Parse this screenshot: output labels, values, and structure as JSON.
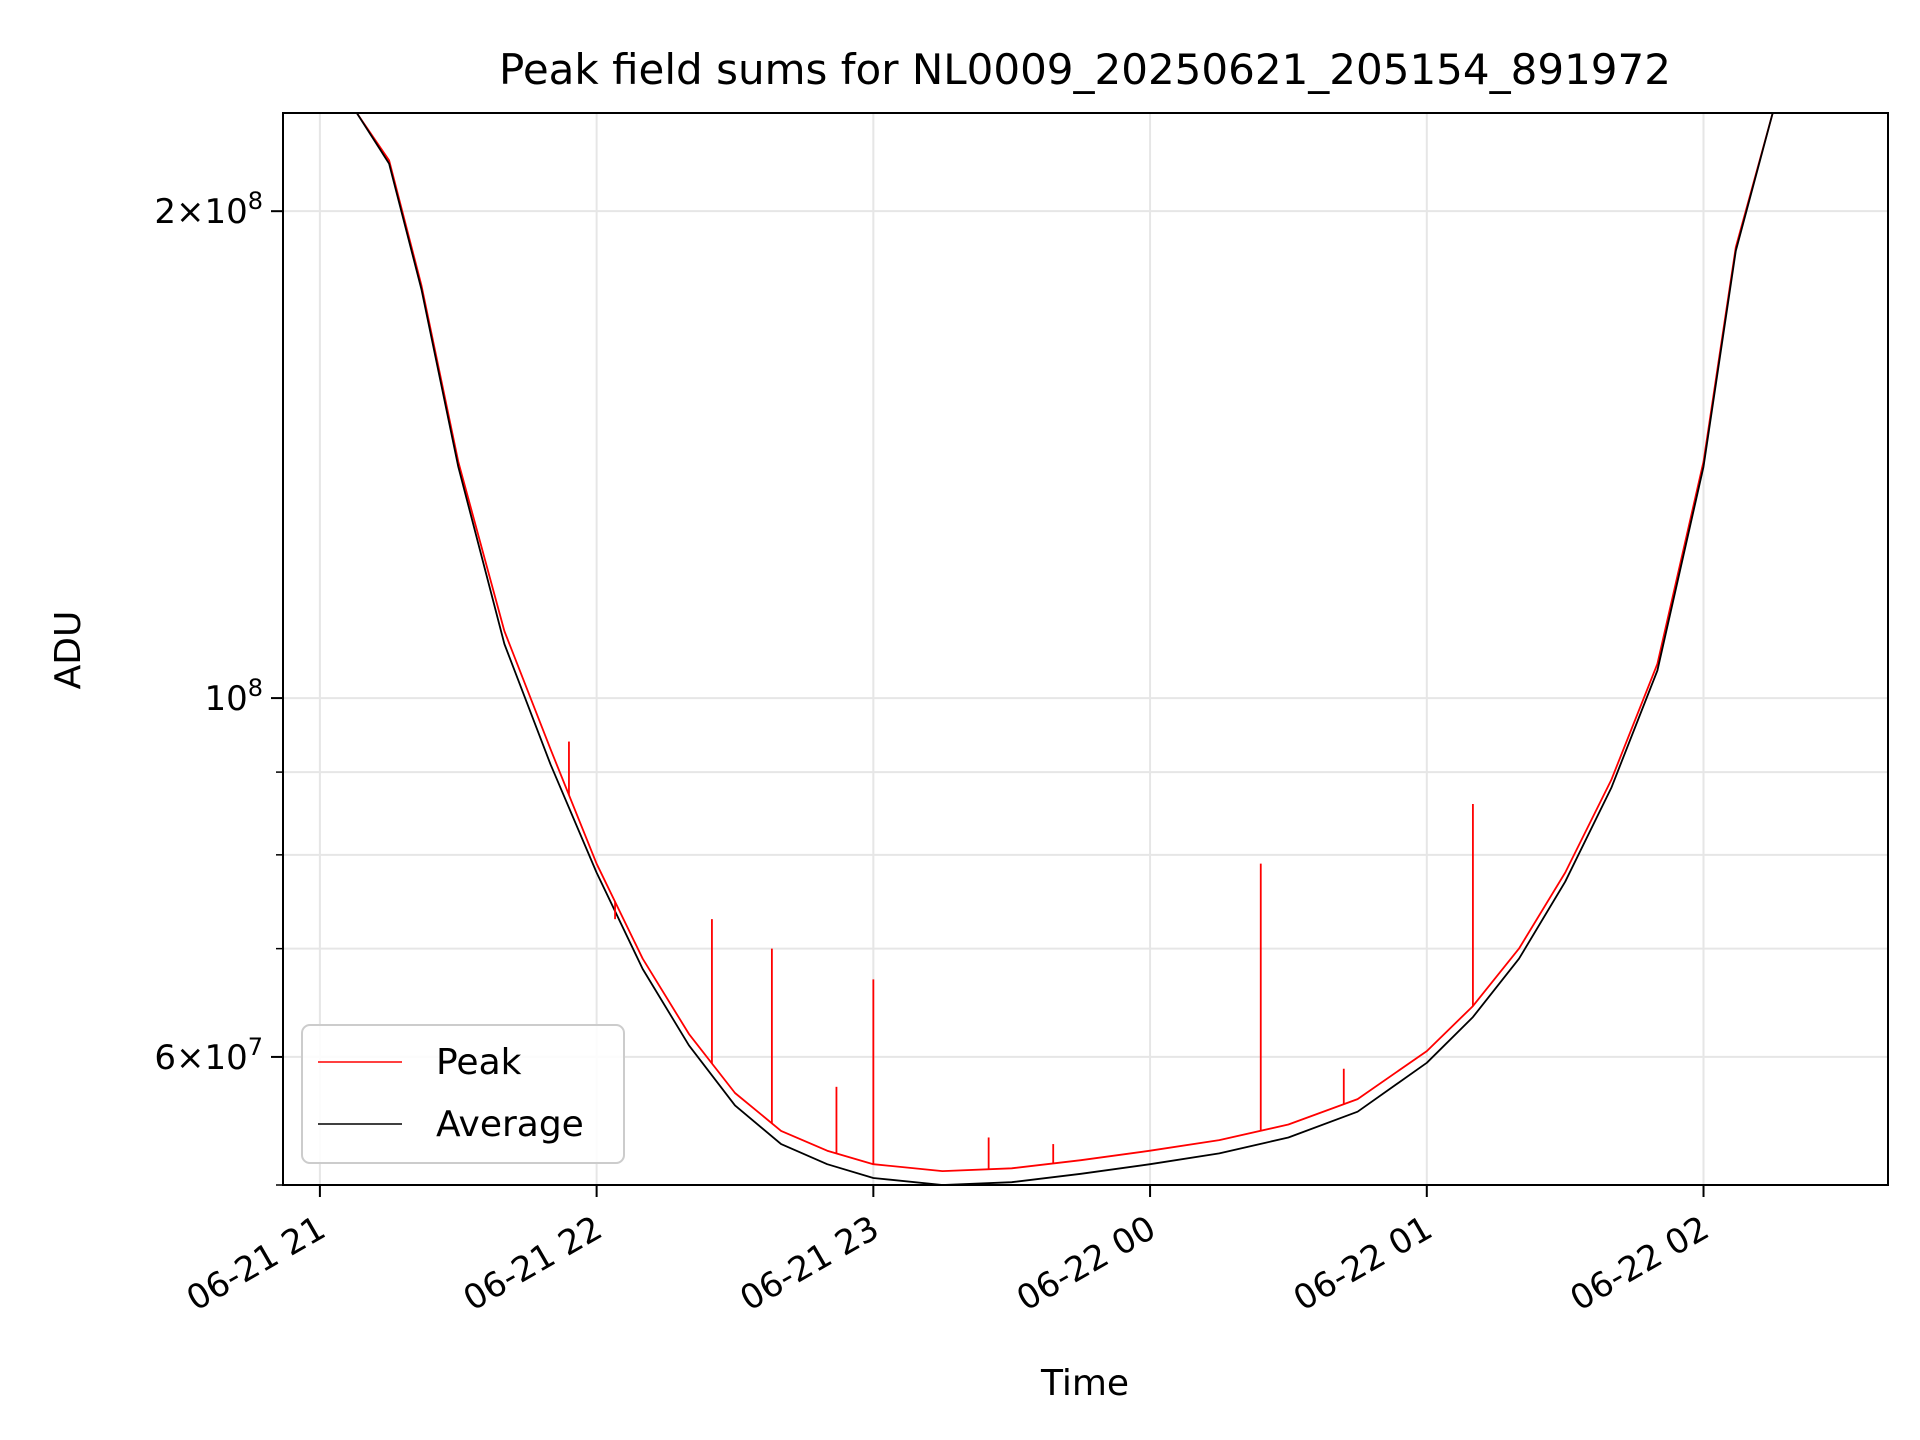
{
  "chart_data": {
    "type": "line",
    "title": "Peak field sums for NL0009_20250621_205154_891972",
    "xlabel": "Time",
    "ylabel": "ADU",
    "y_scale": "log",
    "ylim": [
      50000000,
      230000000
    ],
    "xlim": [
      "2025-06-21 20:52",
      "2025-06-22 02:40"
    ],
    "grid": true,
    "legend_position": "lower-left",
    "x_ticks": [
      {
        "value": "2025-06-21 21:00",
        "label": "06-21 21"
      },
      {
        "value": "2025-06-21 22:00",
        "label": "06-21 22"
      },
      {
        "value": "2025-06-21 23:00",
        "label": "06-21 23"
      },
      {
        "value": "2025-06-22 00:00",
        "label": "06-22 00"
      },
      {
        "value": "2025-06-22 01:00",
        "label": "06-22 01"
      },
      {
        "value": "2025-06-22 02:00",
        "label": "06-22 02"
      }
    ],
    "y_major_ticks": [
      {
        "value": 60000000,
        "mantissa": "6",
        "exponent": "7"
      },
      {
        "value": 100000000,
        "mantissa": "",
        "exponent": "8"
      },
      {
        "value": 200000000,
        "mantissa": "2",
        "exponent": "8"
      }
    ],
    "y_minor_ticks": [
      50000000,
      70000000,
      80000000,
      90000000
    ],
    "series": [
      {
        "name": "Peak",
        "color": "#ff0000",
        "x": [
          "2025-06-21 20:52",
          "2025-06-21 21:08",
          "2025-06-21 21:15",
          "2025-06-21 21:22",
          "2025-06-21 21:30",
          "2025-06-21 21:40",
          "2025-06-21 21:50",
          "2025-06-21 22:00",
          "2025-06-21 22:10",
          "2025-06-21 22:20",
          "2025-06-21 22:30",
          "2025-06-21 22:40",
          "2025-06-21 22:50",
          "2025-06-21 23:00",
          "2025-06-21 23:15",
          "2025-06-21 23:30",
          "2025-06-21 23:45",
          "2025-06-22 00:00",
          "2025-06-22 00:15",
          "2025-06-22 00:30",
          "2025-06-22 00:45",
          "2025-06-22 01:00",
          "2025-06-22 01:10",
          "2025-06-22 01:20",
          "2025-06-22 01:30",
          "2025-06-22 01:40",
          "2025-06-22 01:50",
          "2025-06-22 02:00",
          "2025-06-22 02:07",
          "2025-06-22 02:15",
          "2025-06-22 02:40"
        ],
        "y": [
          230000000,
          230000000,
          215000000,
          180000000,
          140000000,
          110000000,
          93000000,
          79000000,
          69000000,
          62000000,
          57000000,
          54000000,
          52500000,
          51500000,
          51000000,
          51200000,
          51800000,
          52500000,
          53300000,
          54500000,
          56500000,
          60500000,
          64500000,
          70000000,
          78000000,
          89000000,
          105000000,
          140000000,
          190000000,
          230000000,
          230000000
        ]
      },
      {
        "name": "Average",
        "color": "#000000",
        "x": [
          "2025-06-21 20:52",
          "2025-06-21 21:08",
          "2025-06-21 21:15",
          "2025-06-21 21:22",
          "2025-06-21 21:30",
          "2025-06-21 21:40",
          "2025-06-21 21:50",
          "2025-06-21 22:00",
          "2025-06-21 22:10",
          "2025-06-21 22:20",
          "2025-06-21 22:30",
          "2025-06-21 22:40",
          "2025-06-21 22:50",
          "2025-06-21 23:00",
          "2025-06-21 23:15",
          "2025-06-21 23:30",
          "2025-06-21 23:45",
          "2025-06-22 00:00",
          "2025-06-22 00:15",
          "2025-06-22 00:30",
          "2025-06-22 00:45",
          "2025-06-22 01:00",
          "2025-06-22 01:10",
          "2025-06-22 01:20",
          "2025-06-22 01:30",
          "2025-06-22 01:40",
          "2025-06-22 01:50",
          "2025-06-22 02:00",
          "2025-06-22 02:07",
          "2025-06-22 02:15",
          "2025-06-22 02:40"
        ],
        "y": [
          230000000,
          230000000,
          214000000,
          179000000,
          139000000,
          108000000,
          91000000,
          78000000,
          68000000,
          61000000,
          56000000,
          53000000,
          51500000,
          50500000,
          50000000,
          50200000,
          50800000,
          51500000,
          52300000,
          53500000,
          55500000,
          59500000,
          63500000,
          69000000,
          77000000,
          88000000,
          104000000,
          139000000,
          189000000,
          230000000,
          230000000
        ]
      }
    ],
    "peak_spikes": [
      {
        "x": "2025-06-21 22:25",
        "y": 73000000
      },
      {
        "x": "2025-06-21 22:38",
        "y": 70000000
      },
      {
        "x": "2025-06-21 23:00",
        "y": 67000000
      },
      {
        "x": "2025-06-21 21:54",
        "y": 94000000
      },
      {
        "x": "2025-06-21 22:04",
        "y": 73000000
      },
      {
        "x": "2025-06-22 00:24",
        "y": 79000000
      },
      {
        "x": "2025-06-22 00:42",
        "y": 59000000
      },
      {
        "x": "2025-06-22 01:10",
        "y": 86000000
      },
      {
        "x": "2025-06-21 23:25",
        "y": 53500000
      },
      {
        "x": "2025-06-21 23:39",
        "y": 53000000
      },
      {
        "x": "2025-06-21 22:52",
        "y": 57500000
      }
    ]
  }
}
